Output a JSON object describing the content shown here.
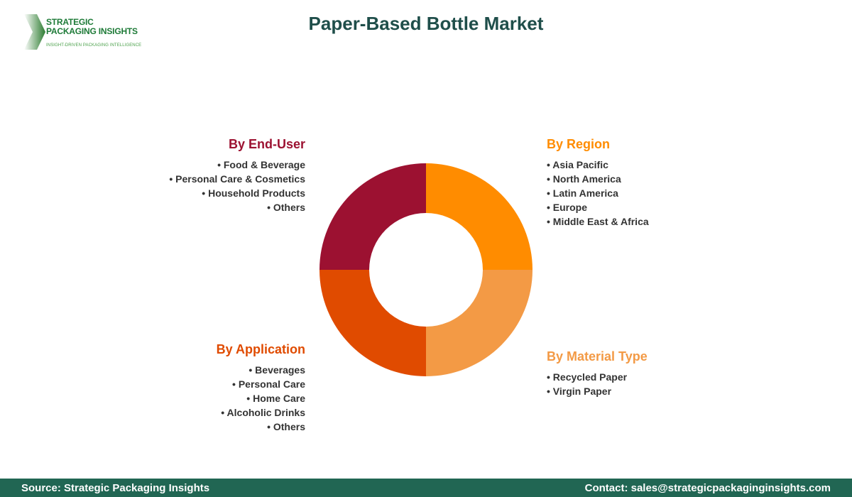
{
  "logo": {
    "line1": "STRATEGIC",
    "line2": "PACKAGING INSIGHTS",
    "tagline": "INSIGHT-DRIVEN PACKAGING INTELLIGENCE"
  },
  "title": "Paper-Based Bottle Market",
  "chart_data": {
    "type": "pie",
    "donut": true,
    "categories": [
      "By Region",
      "By Material Type",
      "By Application",
      "By End-User"
    ],
    "values": [
      25,
      25,
      25,
      25
    ],
    "colors": [
      "#FF8C00",
      "#F39A45",
      "#E04B00",
      "#9C1131"
    ]
  },
  "segments": {
    "end_user": {
      "title": "By End-User",
      "color": "#9C1131",
      "items": [
        "Food & Beverage",
        "Personal Care & Cosmetics",
        "Household Products",
        "Others"
      ]
    },
    "region": {
      "title": "By Region",
      "color": "#FF8C00",
      "items": [
        "Asia Pacific",
        "North America",
        "Latin America",
        "Europe",
        "Middle East & Africa"
      ]
    },
    "application": {
      "title": "By Application",
      "color": "#E04B00",
      "items": [
        "Beverages",
        "Personal Care",
        "Home Care",
        "Alcoholic Drinks",
        "Others"
      ]
    },
    "material": {
      "title": "By Material Type",
      "color": "#F39A45",
      "items": [
        "Recycled Paper",
        "Virgin Paper"
      ]
    }
  },
  "footer": {
    "source": "Source: Strategic Packaging Insights",
    "contact": "Contact: sales@strategicpackaginginsights.com"
  }
}
